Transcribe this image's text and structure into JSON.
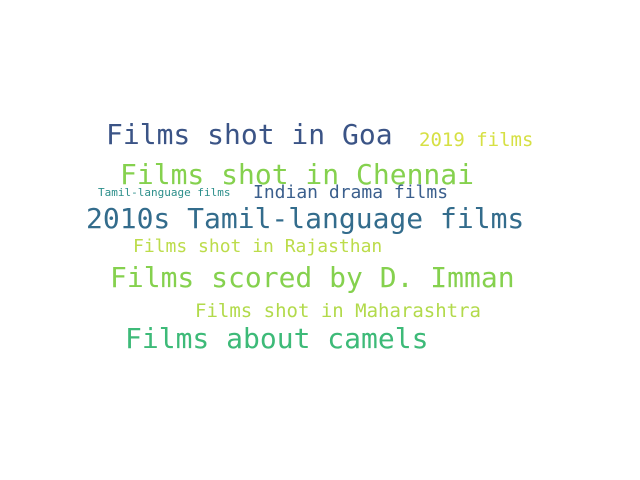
{
  "word_cloud": {
    "words": [
      {
        "text": "Films shot in Goa",
        "color": "#3b5486"
      },
      {
        "text": "2019 films",
        "color": "#d6e044"
      },
      {
        "text": "Films shot in Chennai",
        "color": "#85d14e"
      },
      {
        "text": "Tamil-language films",
        "color": "#2b8e8a"
      },
      {
        "text": "Indian drama films",
        "color": "#3b5f8d"
      },
      {
        "text": "2010s Tamil-language films",
        "color": "#336c8c"
      },
      {
        "text": "Films shot in Rajasthan",
        "color": "#bcdc4a"
      },
      {
        "text": "Films scored by D. Imman",
        "color": "#85d14e"
      },
      {
        "text": "Films shot in Maharashtra",
        "color": "#b2da4b"
      },
      {
        "text": "Films about camels",
        "color": "#3dba78"
      }
    ]
  }
}
